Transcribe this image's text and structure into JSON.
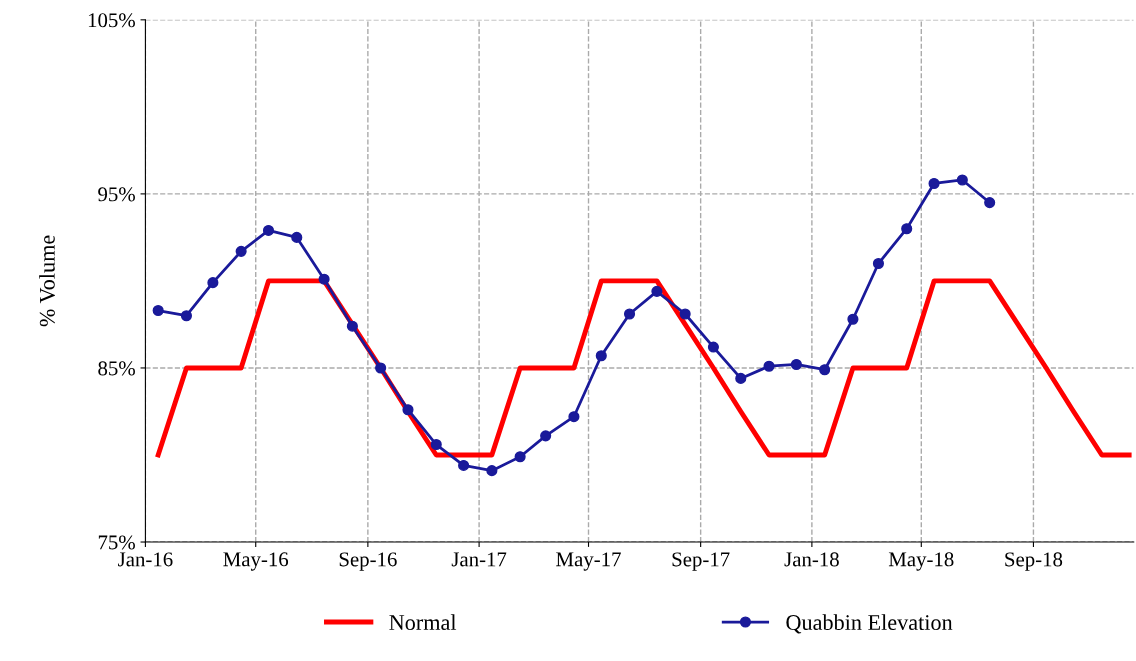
{
  "chart_data": {
    "type": "line",
    "ylabel": "% Volume",
    "xlim": [
      "2016-01-01",
      "2018-12-20"
    ],
    "xticks": [
      {
        "value": "2016-01-01",
        "label": "Jan-16"
      },
      {
        "value": "2016-05-01",
        "label": "May-16"
      },
      {
        "value": "2016-09-01",
        "label": "Sep-16"
      },
      {
        "value": "2017-01-01",
        "label": "Jan-17"
      },
      {
        "value": "2017-05-01",
        "label": "May-17"
      },
      {
        "value": "2017-09-01",
        "label": "Sep-17"
      },
      {
        "value": "2018-01-01",
        "label": "Jan-18"
      },
      {
        "value": "2018-05-01",
        "label": "May-18"
      },
      {
        "value": "2018-09-01",
        "label": "Sep-18"
      }
    ],
    "ylim": [
      75,
      105
    ],
    "yticks": [
      {
        "value": 75,
        "label": "75%"
      },
      {
        "value": 85,
        "label": "85%"
      },
      {
        "value": 95,
        "label": "95%"
      },
      {
        "value": 105,
        "label": "105%"
      }
    ],
    "grid": true,
    "legend": "bottom",
    "series": [
      {
        "name": "Normal",
        "color": "#ff0000",
        "marker": "none",
        "x": [
          "2016-01-15",
          "2016-02-15",
          "2016-03-15",
          "2016-04-15",
          "2016-05-15",
          "2016-06-15",
          "2016-07-15",
          "2016-08-15",
          "2016-09-15",
          "2016-10-15",
          "2016-11-15",
          "2016-12-15",
          "2017-01-15",
          "2017-02-15",
          "2017-03-15",
          "2017-04-15",
          "2017-05-15",
          "2017-06-15",
          "2017-07-15",
          "2017-08-15",
          "2017-09-15",
          "2017-10-15",
          "2017-11-15",
          "2017-12-15",
          "2018-01-15",
          "2018-02-15",
          "2018-03-15",
          "2018-04-15",
          "2018-05-15",
          "2018-06-15",
          "2018-07-15",
          "2018-08-15",
          "2018-09-15",
          "2018-10-15",
          "2018-11-15",
          "2018-12-15"
        ],
        "values": [
          80,
          85,
          85,
          85,
          90,
          90,
          90,
          87.5,
          85,
          82.5,
          80,
          80,
          80,
          85,
          85,
          85,
          90,
          90,
          90,
          87.5,
          85,
          82.5,
          80,
          80,
          80,
          85,
          85,
          85,
          90,
          90,
          90,
          87.5,
          85,
          82.5,
          80,
          80
        ]
      },
      {
        "name": "Quabbin Elevation",
        "color": "#1a1a9a",
        "marker": "circle",
        "x": [
          "2016-01-15",
          "2016-02-15",
          "2016-03-15",
          "2016-04-15",
          "2016-05-15",
          "2016-06-15",
          "2016-07-15",
          "2016-08-15",
          "2016-09-15",
          "2016-10-15",
          "2016-11-15",
          "2016-12-15",
          "2017-01-15",
          "2017-02-15",
          "2017-03-15",
          "2017-04-15",
          "2017-05-15",
          "2017-06-15",
          "2017-07-15",
          "2017-08-15",
          "2017-09-15",
          "2017-10-15",
          "2017-11-15",
          "2017-12-15",
          "2018-01-15",
          "2018-02-15",
          "2018-03-15",
          "2018-04-15",
          "2018-05-15",
          "2018-06-15",
          "2018-07-15"
        ],
        "values": [
          88.3,
          88.0,
          89.9,
          91.7,
          92.9,
          92.5,
          90.1,
          87.4,
          85.0,
          82.6,
          80.6,
          79.4,
          79.1,
          79.9,
          81.1,
          82.2,
          85.7,
          88.1,
          89.4,
          88.1,
          86.2,
          84.4,
          85.1,
          85.2,
          84.9,
          87.8,
          91.0,
          93.0,
          95.6,
          95.8,
          94.5
        ]
      }
    ]
  }
}
